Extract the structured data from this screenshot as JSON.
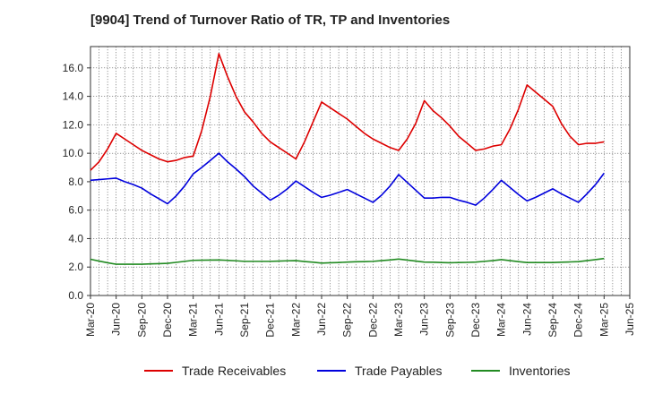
{
  "chart_data": {
    "type": "line",
    "title": "[9904]  Trend of Turnover Ratio of TR, TP and Inventories",
    "xlabel": "",
    "ylabel": "",
    "ylim": [
      0,
      17.5
    ],
    "y_ticks": [
      "0.0",
      "2.0",
      "4.0",
      "6.0",
      "8.0",
      "10.0",
      "12.0",
      "14.0",
      "16.0"
    ],
    "x_ticks": [
      "Mar-20",
      "Jun-20",
      "Sep-20",
      "Dec-20",
      "Mar-21",
      "Jun-21",
      "Sep-21",
      "Dec-21",
      "Mar-22",
      "Jun-22",
      "Sep-22",
      "Dec-22",
      "Mar-23",
      "Jun-23",
      "Sep-23",
      "Dec-23",
      "Mar-24",
      "Jun-24",
      "Sep-24",
      "Dec-24",
      "Mar-25",
      "Jun-25"
    ],
    "grid": true,
    "legend_position": "bottom",
    "x": [
      "Mar-20",
      "Apr-20",
      "May-20",
      "Jun-20",
      "Jul-20",
      "Aug-20",
      "Sep-20",
      "Oct-20",
      "Nov-20",
      "Dec-20",
      "Jan-21",
      "Feb-21",
      "Mar-21",
      "Apr-21",
      "May-21",
      "Jun-21",
      "Jul-21",
      "Aug-21",
      "Sep-21",
      "Oct-21",
      "Nov-21",
      "Dec-21",
      "Jan-22",
      "Feb-22",
      "Mar-22",
      "Apr-22",
      "May-22",
      "Jun-22",
      "Jul-22",
      "Aug-22",
      "Sep-22",
      "Oct-22",
      "Nov-22",
      "Dec-22",
      "Jan-23",
      "Feb-23",
      "Mar-23",
      "Apr-23",
      "May-23",
      "Jun-23",
      "Jul-23",
      "Aug-23",
      "Sep-23",
      "Oct-23",
      "Nov-23",
      "Dec-23",
      "Jan-24",
      "Feb-24",
      "Mar-24",
      "Apr-24",
      "May-24",
      "Jun-24",
      "Jul-24",
      "Aug-24",
      "Sep-24",
      "Oct-24",
      "Nov-24",
      "Dec-24",
      "Jan-25",
      "Feb-25",
      "Mar-25"
    ],
    "series": [
      {
        "name": "Trade Receivables",
        "color": "#dd0000",
        "values": [
          8.8,
          9.4,
          10.3,
          11.4,
          11.0,
          10.6,
          10.2,
          9.9,
          9.6,
          9.4,
          9.5,
          9.7,
          9.8,
          11.6,
          14.0,
          17.0,
          15.4,
          14.0,
          12.9,
          12.2,
          11.4,
          10.8,
          10.4,
          10.0,
          9.6,
          10.8,
          12.2,
          13.6,
          13.2,
          12.8,
          12.4,
          11.9,
          11.4,
          11.0,
          10.7,
          10.4,
          10.2,
          11.0,
          12.1,
          13.7,
          13.0,
          12.5,
          11.9,
          11.2,
          10.7,
          10.2,
          10.3,
          10.5,
          10.6,
          11.7,
          13.1,
          14.8,
          14.3,
          13.8,
          13.3,
          12.1,
          11.2,
          10.6,
          10.7,
          10.7,
          10.8
        ]
      },
      {
        "name": "Trade Payables",
        "color": "#0000dd",
        "values": [
          8.1,
          8.15,
          8.2,
          8.25,
          8.0,
          7.8,
          7.55,
          7.15,
          6.8,
          6.45,
          7.0,
          7.7,
          8.55,
          9.0,
          9.5,
          10.0,
          9.4,
          8.9,
          8.35,
          7.7,
          7.2,
          6.7,
          7.05,
          7.5,
          8.05,
          7.65,
          7.25,
          6.9,
          7.05,
          7.25,
          7.45,
          7.15,
          6.85,
          6.55,
          7.05,
          7.7,
          8.5,
          7.95,
          7.4,
          6.85,
          6.85,
          6.9,
          6.9,
          6.7,
          6.55,
          6.35,
          6.85,
          7.45,
          8.1,
          7.6,
          7.1,
          6.65,
          6.9,
          7.2,
          7.5,
          7.15,
          6.85,
          6.55,
          7.15,
          7.8,
          8.6
        ]
      },
      {
        "name": "Inventories",
        "color": "#228b22",
        "values": [
          2.55,
          2.42,
          2.3,
          2.2,
          2.2,
          2.2,
          2.2,
          2.22,
          2.24,
          2.26,
          2.33,
          2.4,
          2.47,
          2.48,
          2.49,
          2.5,
          2.47,
          2.44,
          2.4,
          2.4,
          2.4,
          2.4,
          2.42,
          2.44,
          2.45,
          2.39,
          2.34,
          2.28,
          2.3,
          2.32,
          2.35,
          2.37,
          2.38,
          2.4,
          2.45,
          2.5,
          2.56,
          2.49,
          2.42,
          2.35,
          2.34,
          2.32,
          2.3,
          2.32,
          2.33,
          2.35,
          2.4,
          2.45,
          2.52,
          2.45,
          2.38,
          2.32,
          2.32,
          2.32,
          2.32,
          2.34,
          2.36,
          2.38,
          2.45,
          2.52,
          2.6
        ]
      }
    ]
  }
}
